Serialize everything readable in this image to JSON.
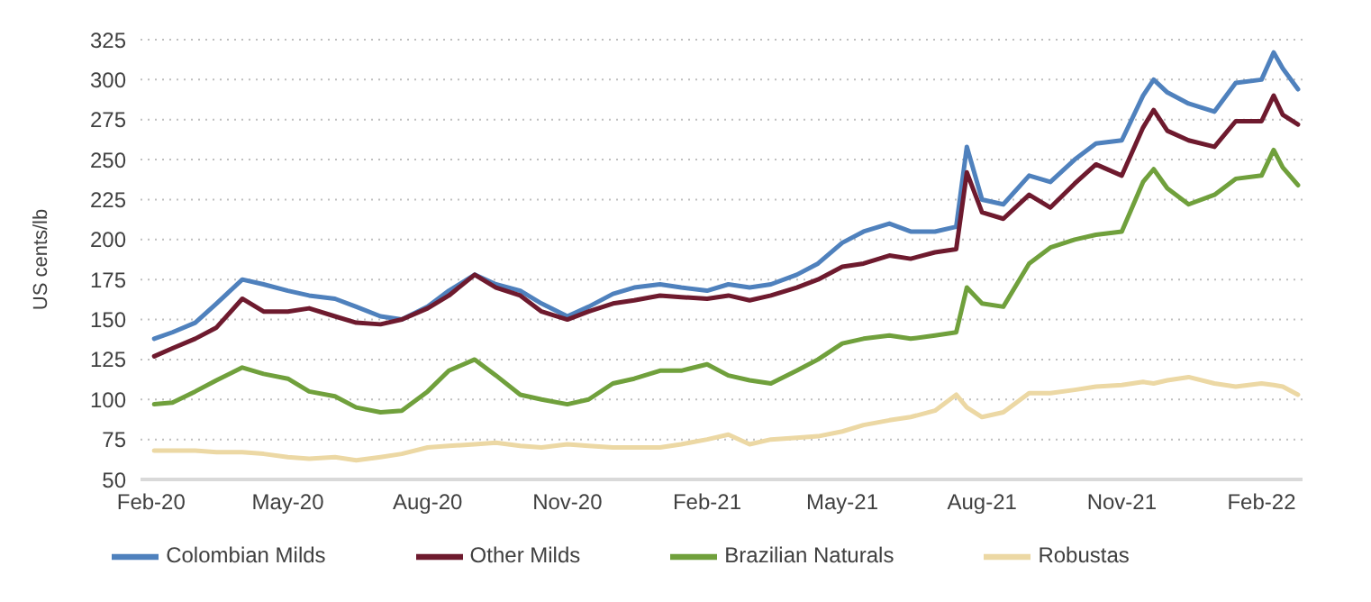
{
  "chart_data": {
    "type": "line",
    "ylabel": "US cents/lb",
    "x": [
      "2020-02-03",
      "2020-02-15",
      "2020-03-01",
      "2020-03-15",
      "2020-04-01",
      "2020-04-15",
      "2020-05-01",
      "2020-05-15",
      "2020-06-01",
      "2020-06-15",
      "2020-07-01",
      "2020-07-15",
      "2020-08-01",
      "2020-08-15",
      "2020-09-01",
      "2020-09-15",
      "2020-10-01",
      "2020-10-15",
      "2020-11-01",
      "2020-11-15",
      "2020-12-01",
      "2020-12-15",
      "2021-01-01",
      "2021-01-15",
      "2021-02-01",
      "2021-02-15",
      "2021-03-01",
      "2021-03-15",
      "2021-04-01",
      "2021-04-15",
      "2021-05-01",
      "2021-05-15",
      "2021-06-01",
      "2021-06-15",
      "2021-07-01",
      "2021-07-15",
      "2021-07-22",
      "2021-08-01",
      "2021-08-15",
      "2021-09-01",
      "2021-09-15",
      "2021-10-01",
      "2021-10-15",
      "2021-11-01",
      "2021-11-15",
      "2021-11-22",
      "2021-12-01",
      "2021-12-15",
      "2022-01-01",
      "2022-01-15",
      "2022-02-01",
      "2022-02-09",
      "2022-02-15",
      "2022-02-25"
    ],
    "series": [
      {
        "name": "Colombian Milds",
        "color": "#4f81bd",
        "values": [
          138,
          142,
          148,
          160,
          175,
          172,
          168,
          165,
          163,
          158,
          152,
          150,
          158,
          168,
          178,
          172,
          168,
          160,
          152,
          158,
          166,
          170,
          172,
          170,
          168,
          172,
          170,
          172,
          178,
          185,
          198,
          205,
          210,
          205,
          205,
          208,
          258,
          225,
          222,
          240,
          236,
          250,
          260,
          262,
          290,
          300,
          292,
          285,
          280,
          298,
          300,
          317,
          307,
          294
        ]
      },
      {
        "name": "Other Milds",
        "color": "#6e1a2e",
        "values": [
          127,
          132,
          138,
          145,
          163,
          155,
          155,
          157,
          152,
          148,
          147,
          150,
          157,
          165,
          178,
          170,
          165,
          155,
          150,
          155,
          160,
          162,
          165,
          164,
          163,
          165,
          162,
          165,
          170,
          175,
          183,
          185,
          190,
          188,
          192,
          194,
          242,
          217,
          213,
          228,
          220,
          235,
          247,
          240,
          270,
          281,
          268,
          262,
          258,
          274,
          274,
          290,
          278,
          272
        ]
      },
      {
        "name": "Brazilian Naturals",
        "color": "#70a03c",
        "values": [
          97,
          98,
          105,
          112,
          120,
          116,
          113,
          105,
          102,
          95,
          92,
          93,
          105,
          118,
          125,
          115,
          103,
          100,
          97,
          100,
          110,
          113,
          118,
          118,
          122,
          115,
          112,
          110,
          118,
          125,
          135,
          138,
          140,
          138,
          140,
          142,
          170,
          160,
          158,
          185,
          195,
          200,
          203,
          205,
          236,
          244,
          232,
          222,
          228,
          238,
          240,
          256,
          245,
          234
        ]
      },
      {
        "name": "Robustas",
        "color": "#ecd8a4",
        "values": [
          68,
          68,
          68,
          67,
          67,
          66,
          64,
          63,
          64,
          62,
          64,
          66,
          70,
          71,
          72,
          73,
          71,
          70,
          72,
          71,
          70,
          70,
          70,
          72,
          75,
          78,
          72,
          75,
          76,
          77,
          80,
          84,
          87,
          89,
          93,
          103,
          95,
          89,
          92,
          104,
          104,
          106,
          108,
          109,
          111,
          110,
          112,
          114,
          110,
          108,
          110,
          109,
          108,
          103
        ]
      }
    ],
    "xlim": [
      "2020-01-25",
      "2022-02-28"
    ],
    "xticks": [
      {
        "value": "2020-02-01",
        "label": "Feb-20"
      },
      {
        "value": "2020-05-01",
        "label": "May-20"
      },
      {
        "value": "2020-08-01",
        "label": "Aug-20"
      },
      {
        "value": "2020-11-01",
        "label": "Nov-20"
      },
      {
        "value": "2021-02-01",
        "label": "Feb-21"
      },
      {
        "value": "2021-05-01",
        "label": "May-21"
      },
      {
        "value": "2021-08-01",
        "label": "Aug-21"
      },
      {
        "value": "2021-11-01",
        "label": "Nov-21"
      },
      {
        "value": "2022-02-01",
        "label": "Feb-22"
      }
    ],
    "ylim": [
      50,
      325
    ],
    "yticks": [
      50,
      75,
      100,
      125,
      150,
      175,
      200,
      225,
      250,
      275,
      300,
      325
    ],
    "grid": "y",
    "legend": "bottom",
    "marker": "none",
    "line_style": "solid"
  }
}
